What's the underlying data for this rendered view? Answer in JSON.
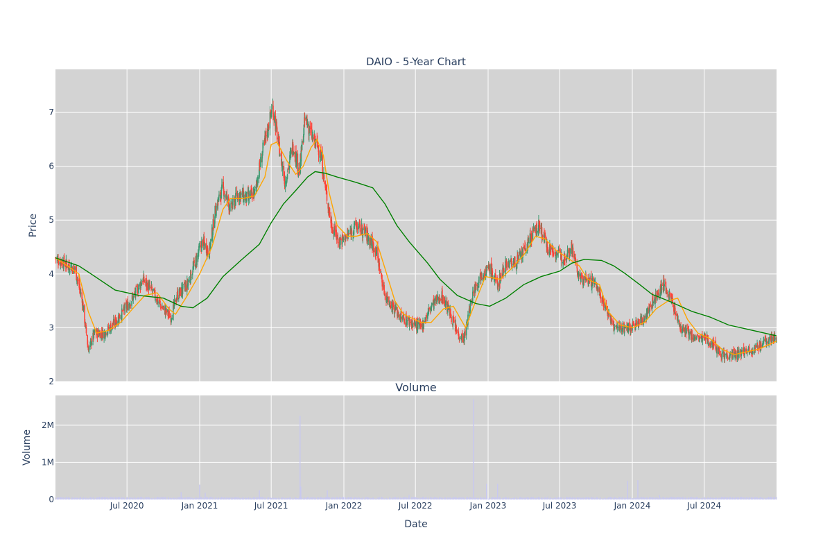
{
  "chart_data": [
    {
      "type": "candlestick",
      "title": "DAIO - 5-Year Chart",
      "ylabel": "Price",
      "ylim": [
        2,
        7.8
      ],
      "y_ticks": [
        2,
        3,
        4,
        5,
        6,
        7
      ],
      "x_range": [
        "2020-01-02",
        "2024-12-31"
      ],
      "x_ticks": [
        "2020-07-01",
        "2021-01-01",
        "2021-07-01",
        "2022-01-01",
        "2022-07-01",
        "2023-01-01",
        "2023-07-01",
        "2024-01-01",
        "2024-07-01"
      ],
      "x_tick_labels": [
        "Jul 2020",
        "Jan 2021",
        "Jul 2021",
        "Jan 2022",
        "Jul 2022",
        "Jan 2023",
        "Jul 2023",
        "Jan 2024",
        "Jul 2024"
      ],
      "grid": true,
      "colors": {
        "background": "#d3d3d3",
        "grid": "#ffffff",
        "increasing": "#3d9970",
        "decreasing": "#ff4136",
        "short_ma": "#ffa500",
        "long_ma": "#008000"
      },
      "close_series": {
        "dates": [
          "2020-01-02",
          "2020-01-25",
          "2020-02-20",
          "2020-03-10",
          "2020-03-25",
          "2020-04-10",
          "2020-05-05",
          "2020-06-01",
          "2020-07-01",
          "2020-07-20",
          "2020-08-10",
          "2020-09-01",
          "2020-09-25",
          "2020-10-20",
          "2020-11-05",
          "2020-12-01",
          "2020-12-20",
          "2021-01-08",
          "2021-01-25",
          "2021-02-10",
          "2021-03-01",
          "2021-03-20",
          "2021-04-10",
          "2021-05-01",
          "2021-05-20",
          "2021-06-10",
          "2021-06-25",
          "2021-07-05",
          "2021-07-20",
          "2021-08-05",
          "2021-08-25",
          "2021-09-10",
          "2021-09-25",
          "2021-10-15",
          "2021-11-01",
          "2021-11-15",
          "2021-12-01",
          "2021-12-20",
          "2022-01-10",
          "2022-02-01",
          "2022-02-20",
          "2022-03-10",
          "2022-03-25",
          "2022-04-15",
          "2022-05-05",
          "2022-05-25",
          "2022-06-20",
          "2022-07-15",
          "2022-08-10",
          "2022-09-05",
          "2022-09-25",
          "2022-10-15",
          "2022-11-01",
          "2022-11-25",
          "2022-12-15",
          "2023-01-05",
          "2023-01-25",
          "2023-02-15",
          "2023-03-10",
          "2023-04-01",
          "2023-04-20",
          "2023-05-10",
          "2023-06-01",
          "2023-06-20",
          "2023-07-10",
          "2023-08-01",
          "2023-08-20",
          "2023-09-10",
          "2023-10-01",
          "2023-10-25",
          "2023-11-15",
          "2023-12-05",
          "2023-12-25",
          "2024-01-20",
          "2024-02-10",
          "2024-03-01",
          "2024-03-20",
          "2024-04-10",
          "2024-05-01",
          "2024-05-20",
          "2024-06-10",
          "2024-07-01",
          "2024-07-25",
          "2024-08-15",
          "2024-09-05",
          "2024-09-25",
          "2024-10-15",
          "2024-11-05",
          "2024-11-25",
          "2024-12-15",
          "2024-12-31"
        ],
        "values": [
          4.3,
          4.2,
          4.1,
          3.5,
          2.6,
          2.9,
          2.9,
          3.1,
          3.4,
          3.6,
          3.9,
          3.7,
          3.4,
          3.2,
          3.6,
          3.8,
          4.2,
          4.6,
          4.4,
          5.2,
          5.6,
          5.2,
          5.5,
          5.4,
          5.5,
          6.3,
          6.8,
          7.1,
          6.4,
          5.7,
          6.4,
          5.9,
          6.9,
          6.5,
          6.3,
          5.6,
          4.9,
          4.6,
          4.7,
          4.9,
          4.8,
          4.6,
          4.4,
          3.6,
          3.4,
          3.2,
          3.1,
          3.0,
          3.4,
          3.6,
          3.3,
          2.9,
          2.8,
          3.7,
          4.0,
          4.1,
          3.8,
          4.2,
          4.2,
          4.4,
          4.7,
          4.9,
          4.5,
          4.4,
          4.3,
          4.5,
          3.9,
          3.9,
          3.8,
          3.4,
          3.0,
          3.0,
          3.0,
          3.1,
          3.3,
          3.6,
          3.8,
          3.5,
          3.0,
          2.9,
          2.8,
          2.8,
          2.7,
          2.5,
          2.5,
          2.5,
          2.6,
          2.6,
          2.7,
          2.8,
          2.8
        ]
      },
      "series": [
        {
          "type": "line",
          "color": "#ffa500",
          "points": [
            [
              "2020-01-02",
              4.3
            ],
            [
              "2020-02-01",
              4.15
            ],
            [
              "2020-03-01",
              4.0
            ],
            [
              "2020-03-25",
              3.3
            ],
            [
              "2020-04-15",
              2.9
            ],
            [
              "2020-05-15",
              2.95
            ],
            [
              "2020-06-15",
              3.1
            ],
            [
              "2020-07-15",
              3.35
            ],
            [
              "2020-08-15",
              3.6
            ],
            [
              "2020-09-15",
              3.65
            ],
            [
              "2020-10-15",
              3.35
            ],
            [
              "2020-11-01",
              3.25
            ],
            [
              "2020-12-01",
              3.6
            ],
            [
              "2021-01-01",
              4.0
            ],
            [
              "2021-02-01",
              4.5
            ],
            [
              "2021-03-01",
              5.2
            ],
            [
              "2021-03-20",
              5.4
            ],
            [
              "2021-04-20",
              5.4
            ],
            [
              "2021-05-20",
              5.45
            ],
            [
              "2021-06-15",
              5.8
            ],
            [
              "2021-07-01",
              6.4
            ],
            [
              "2021-07-15",
              6.45
            ],
            [
              "2021-08-10",
              6.1
            ],
            [
              "2021-09-01",
              5.85
            ],
            [
              "2021-09-20",
              6.0
            ],
            [
              "2021-10-10",
              6.35
            ],
            [
              "2021-10-25",
              6.5
            ],
            [
              "2021-11-10",
              6.2
            ],
            [
              "2021-11-25",
              5.5
            ],
            [
              "2021-12-15",
              4.9
            ],
            [
              "2022-01-10",
              4.7
            ],
            [
              "2022-02-01",
              4.7
            ],
            [
              "2022-03-01",
              4.75
            ],
            [
              "2022-03-25",
              4.6
            ],
            [
              "2022-04-15",
              4.1
            ],
            [
              "2022-05-10",
              3.5
            ],
            [
              "2022-06-01",
              3.25
            ],
            [
              "2022-07-15",
              3.1
            ],
            [
              "2022-08-10",
              3.1
            ],
            [
              "2022-09-10",
              3.35
            ],
            [
              "2022-10-05",
              3.4
            ],
            [
              "2022-11-05",
              3.0
            ],
            [
              "2022-12-01",
              3.5
            ],
            [
              "2022-12-25",
              3.95
            ],
            [
              "2023-02-01",
              3.9
            ],
            [
              "2023-03-01",
              4.1
            ],
            [
              "2023-04-01",
              4.35
            ],
            [
              "2023-05-01",
              4.7
            ],
            [
              "2023-05-25",
              4.65
            ],
            [
              "2023-06-20",
              4.45
            ],
            [
              "2023-07-20",
              4.3
            ],
            [
              "2023-08-20",
              4.15
            ],
            [
              "2023-09-10",
              3.9
            ],
            [
              "2023-10-10",
              3.8
            ],
            [
              "2023-11-01",
              3.3
            ],
            [
              "2023-12-01",
              3.05
            ],
            [
              "2024-01-01",
              3.0
            ],
            [
              "2024-02-01",
              3.1
            ],
            [
              "2024-03-01",
              3.35
            ],
            [
              "2024-04-01",
              3.5
            ],
            [
              "2024-04-25",
              3.55
            ],
            [
              "2024-05-20",
              3.15
            ],
            [
              "2024-06-15",
              2.9
            ],
            [
              "2024-07-15",
              2.8
            ],
            [
              "2024-08-15",
              2.6
            ],
            [
              "2024-09-15",
              2.5
            ],
            [
              "2024-10-15",
              2.55
            ],
            [
              "2024-11-15",
              2.6
            ],
            [
              "2024-12-31",
              2.75
            ]
          ]
        },
        {
          "type": "line",
          "color": "#008000",
          "points": [
            [
              "2020-01-02",
              4.3
            ],
            [
              "2020-03-01",
              4.15
            ],
            [
              "2020-04-01",
              4.0
            ],
            [
              "2020-06-01",
              3.7
            ],
            [
              "2020-08-01",
              3.6
            ],
            [
              "2020-10-01",
              3.55
            ],
            [
              "2020-11-15",
              3.4
            ],
            [
              "2020-12-15",
              3.37
            ],
            [
              "2021-01-20",
              3.55
            ],
            [
              "2021-03-01",
              3.95
            ],
            [
              "2021-04-15",
              4.25
            ],
            [
              "2021-06-01",
              4.55
            ],
            [
              "2021-07-01",
              4.95
            ],
            [
              "2021-08-01",
              5.3
            ],
            [
              "2021-09-01",
              5.55
            ],
            [
              "2021-10-01",
              5.8
            ],
            [
              "2021-10-20",
              5.9
            ],
            [
              "2021-11-15",
              5.87
            ],
            [
              "2021-12-15",
              5.8
            ],
            [
              "2022-02-01",
              5.7
            ],
            [
              "2022-03-15",
              5.6
            ],
            [
              "2022-04-15",
              5.3
            ],
            [
              "2022-05-15",
              4.9
            ],
            [
              "2022-06-15",
              4.6
            ],
            [
              "2022-08-01",
              4.2
            ],
            [
              "2022-09-01",
              3.9
            ],
            [
              "2022-10-15",
              3.6
            ],
            [
              "2022-12-01",
              3.45
            ],
            [
              "2023-01-05",
              3.4
            ],
            [
              "2023-02-15",
              3.55
            ],
            [
              "2023-04-01",
              3.8
            ],
            [
              "2023-05-15",
              3.95
            ],
            [
              "2023-07-01",
              4.05
            ],
            [
              "2023-08-01",
              4.2
            ],
            [
              "2023-09-01",
              4.27
            ],
            [
              "2023-10-15",
              4.25
            ],
            [
              "2023-11-15",
              4.15
            ],
            [
              "2023-12-15",
              4.0
            ],
            [
              "2024-01-20",
              3.8
            ],
            [
              "2024-02-20",
              3.62
            ],
            [
              "2024-04-01",
              3.5
            ],
            [
              "2024-06-01",
              3.3
            ],
            [
              "2024-07-15",
              3.2
            ],
            [
              "2024-09-01",
              3.05
            ],
            [
              "2024-11-01",
              2.95
            ],
            [
              "2024-12-31",
              2.85
            ]
          ]
        }
      ]
    },
    {
      "type": "bar",
      "title": "Volume",
      "xlabel": "Date",
      "ylabel": "Volume",
      "ylim": [
        0,
        2800000
      ],
      "y_ticks": [
        0,
        1000000,
        2000000
      ],
      "y_tick_labels": [
        "0",
        "1M",
        "2M"
      ],
      "x_tick_labels": [
        "Jul 2020",
        "Jan 2021",
        "Jul 2021",
        "Jan 2022",
        "Jul 2022",
        "Jan 2023",
        "Jul 2023",
        "Jan 2024",
        "Jul 2024"
      ],
      "bar_color": "#c8c8f0",
      "baseline_volume": 40000,
      "spikes": [
        [
          "2020-11-15",
          200000
        ],
        [
          "2021-01-01",
          400000
        ],
        [
          "2021-01-15",
          180000
        ],
        [
          "2021-06-01",
          250000
        ],
        [
          "2021-09-12",
          2250000
        ],
        [
          "2021-09-14",
          350000
        ],
        [
          "2021-11-20",
          250000
        ],
        [
          "2022-06-15",
          120000
        ],
        [
          "2022-11-25",
          2700000
        ],
        [
          "2022-12-28",
          420000
        ],
        [
          "2023-01-25",
          420000
        ],
        [
          "2023-06-01",
          80000
        ],
        [
          "2023-12-20",
          500000
        ],
        [
          "2024-01-15",
          520000
        ],
        [
          "2024-03-10",
          120000
        ]
      ]
    }
  ]
}
